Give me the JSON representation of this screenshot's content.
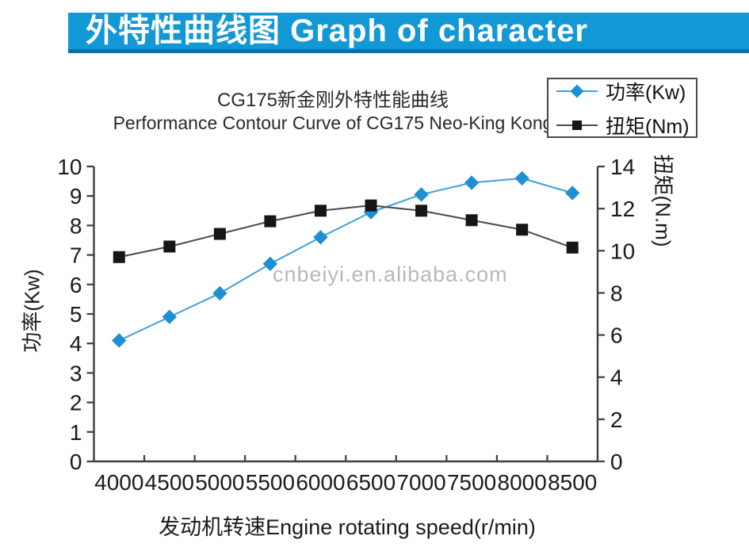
{
  "banner": {
    "title": "外特性曲线图 Graph of character",
    "bg_color": "#1398d6",
    "edge_color": "#0d6fa6"
  },
  "chart": {
    "title_zh": "CG175新金刚外特性能曲线",
    "title_en": "Performance Contour Curve of CG175 Neo-King Kong",
    "y_left_axis_label": "功率(Kw)",
    "y_right_axis_label": "扭矩(N.m)",
    "x_axis_label": "发动机转速Engine rotating speed(r/min)",
    "watermark": "cnbeiyi.en.alibaba.com",
    "legend": {
      "power_label": "功率(Kw)",
      "torque_label": "扭矩(Nm)"
    }
  },
  "chart_data": {
    "type": "line",
    "title_zh": "CG175新金刚外特性能曲线",
    "title_en": "Performance Contour Curve of CG175 Neo-King Kong",
    "xlabel": "发动机转速Engine rotating speed(r/min)",
    "x": [
      4000,
      4500,
      5000,
      5500,
      6000,
      6500,
      7000,
      7500,
      8000,
      8500
    ],
    "x_tick_labels": [
      "4000",
      "4500",
      "5000",
      "5500",
      "6000",
      "6500",
      "7000",
      "7500",
      "8000",
      "8500"
    ],
    "series": [
      {
        "name": "功率(Kw)",
        "axis": "left",
        "marker": "diamond",
        "marker_color": "#1e90d2",
        "line_color": "#3fa0d8",
        "values": [
          4.1,
          4.9,
          5.7,
          6.7,
          7.6,
          8.45,
          9.05,
          9.45,
          9.6,
          9.1
        ]
      },
      {
        "name": "扭矩(Nm)",
        "axis": "right",
        "marker": "square",
        "marker_color": "#161616",
        "line_color": "#4a4a4a",
        "values": [
          9.7,
          10.2,
          10.8,
          11.4,
          11.9,
          12.15,
          11.9,
          11.45,
          11.0,
          10.15
        ]
      }
    ],
    "y_left": {
      "label": "功率(Kw)",
      "min": 0,
      "max": 10,
      "step": 1
    },
    "y_right": {
      "label": "扭矩(N.m)",
      "min": 0,
      "max": 14,
      "step": 2
    },
    "grid": false,
    "legend_position": "top-right",
    "axis_color": "#3f3f3f",
    "tick_label_color": "#1a1a1a"
  }
}
